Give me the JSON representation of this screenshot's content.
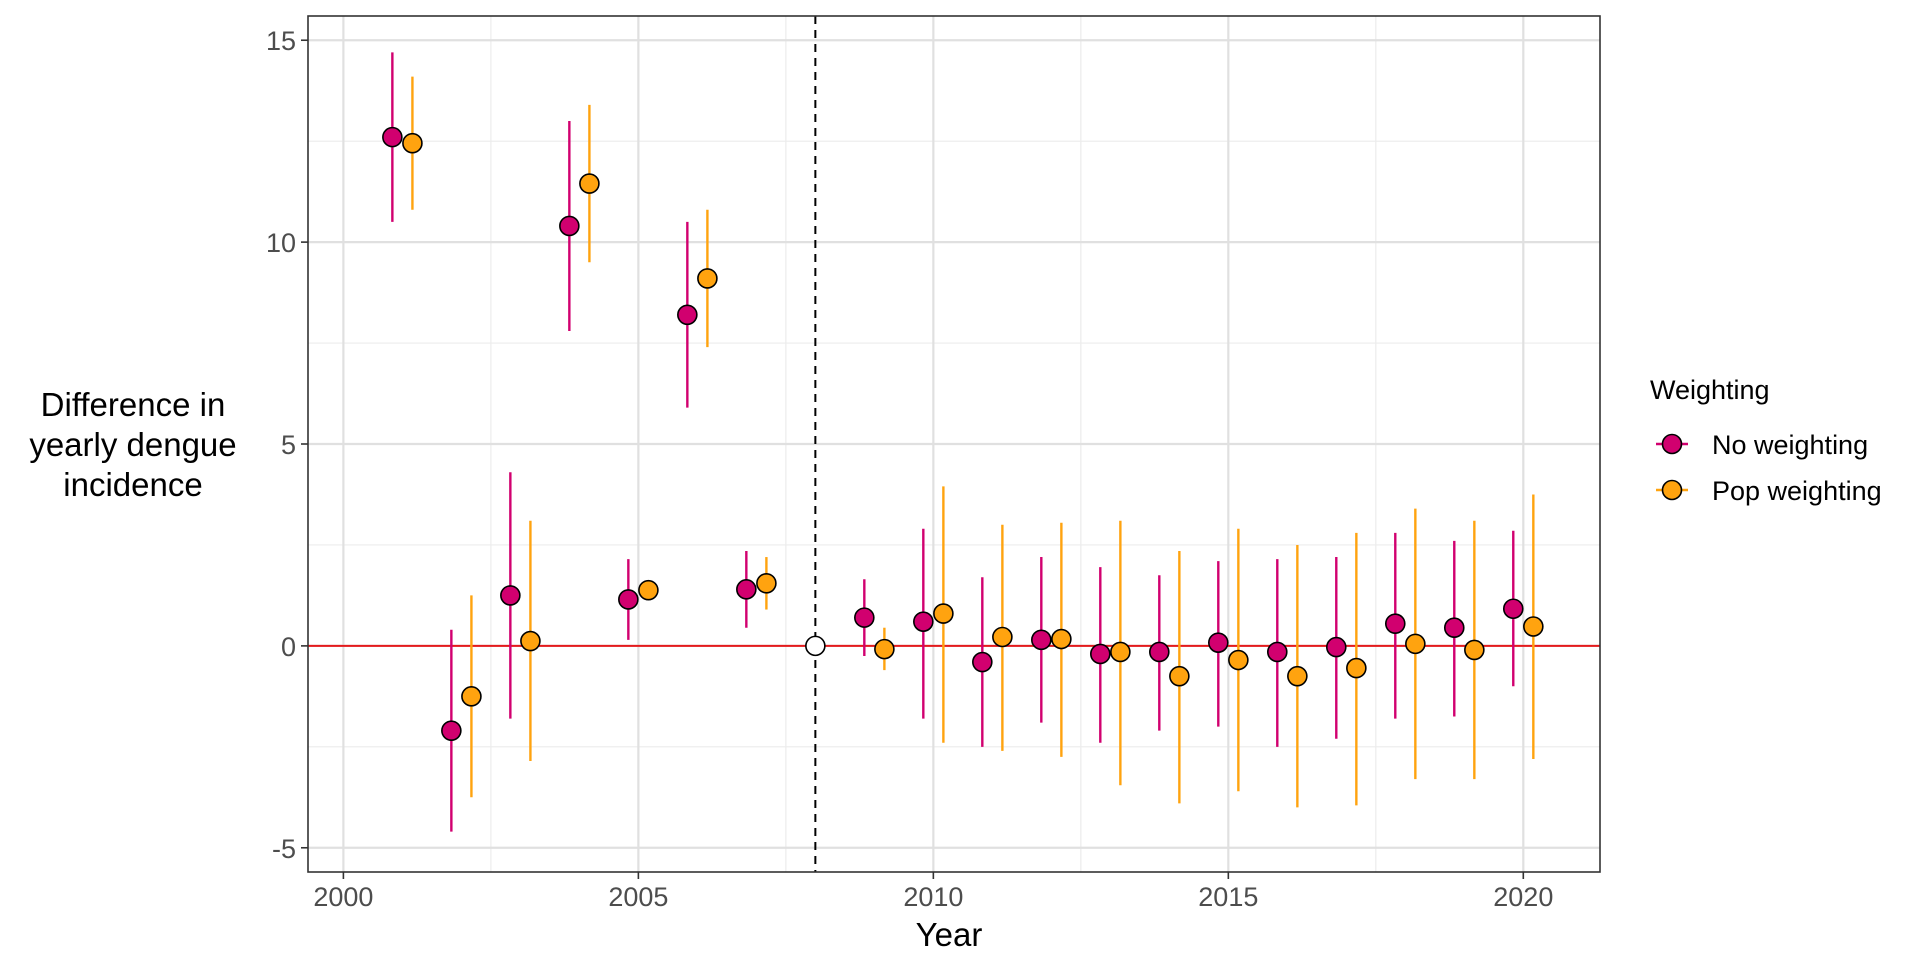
{
  "chart_data": {
    "type": "scatter",
    "title": "",
    "xlabel": "Year",
    "ylabel": "Difference in yearly dengue incidence",
    "ylabel_lines": [
      "Difference in",
      "yearly dengue",
      "incidence"
    ],
    "xlim": [
      1999.4,
      2021.3
    ],
    "ylim": [
      -5.6,
      15.6
    ],
    "x_ticks": [
      2000,
      2005,
      2010,
      2015,
      2020
    ],
    "y_ticks": [
      -5,
      0,
      5,
      10,
      15
    ],
    "y_tick_labels": [
      "-5",
      "0",
      "5",
      "10",
      "15"
    ],
    "grid": true,
    "legend": {
      "title": "Weighting",
      "position": "right"
    },
    "reference_line": {
      "y": 0,
      "color": "#e41a1c"
    },
    "vertical_line": {
      "x": 2008,
      "style": "dashed"
    },
    "reference_point": {
      "x": 2008,
      "y": 0,
      "color": "#ffffff"
    },
    "series": [
      {
        "name": "No weighting",
        "color": "#d1006f",
        "dodge": -0.17,
        "points": [
          {
            "x": 2001,
            "y": 12.6,
            "lo": 10.5,
            "hi": 14.7
          },
          {
            "x": 2002,
            "y": -2.1,
            "lo": -4.6,
            "hi": 0.4
          },
          {
            "x": 2003,
            "y": 1.25,
            "lo": -1.8,
            "hi": 4.3
          },
          {
            "x": 2004,
            "y": 10.4,
            "lo": 7.8,
            "hi": 13.0
          },
          {
            "x": 2005,
            "y": 1.15,
            "lo": 0.15,
            "hi": 2.15
          },
          {
            "x": 2006,
            "y": 8.2,
            "lo": 5.9,
            "hi": 10.5
          },
          {
            "x": 2007,
            "y": 1.4,
            "lo": 0.45,
            "hi": 2.35
          },
          {
            "x": 2009,
            "y": 0.7,
            "lo": -0.25,
            "hi": 1.65
          },
          {
            "x": 2010,
            "y": 0.6,
            "lo": -1.8,
            "hi": 2.9
          },
          {
            "x": 2011,
            "y": -0.4,
            "lo": -2.5,
            "hi": 1.7
          },
          {
            "x": 2012,
            "y": 0.15,
            "lo": -1.9,
            "hi": 2.2
          },
          {
            "x": 2013,
            "y": -0.2,
            "lo": -2.4,
            "hi": 1.95
          },
          {
            "x": 2014,
            "y": -0.15,
            "lo": -2.1,
            "hi": 1.75
          },
          {
            "x": 2015,
            "y": 0.08,
            "lo": -2.0,
            "hi": 2.1
          },
          {
            "x": 2016,
            "y": -0.15,
            "lo": -2.5,
            "hi": 2.15
          },
          {
            "x": 2017,
            "y": -0.03,
            "lo": -2.3,
            "hi": 2.2
          },
          {
            "x": 2018,
            "y": 0.55,
            "lo": -1.8,
            "hi": 2.8
          },
          {
            "x": 2019,
            "y": 0.45,
            "lo": -1.75,
            "hi": 2.6
          },
          {
            "x": 2020,
            "y": 0.92,
            "lo": -1.0,
            "hi": 2.85
          }
        ]
      },
      {
        "name": "Pop weighting",
        "color": "#ffa30f",
        "dodge": 0.17,
        "points": [
          {
            "x": 2001,
            "y": 12.45,
            "lo": 10.8,
            "hi": 14.1
          },
          {
            "x": 2002,
            "y": -1.25,
            "lo": -3.75,
            "hi": 1.25
          },
          {
            "x": 2003,
            "y": 0.12,
            "lo": -2.85,
            "hi": 3.1
          },
          {
            "x": 2004,
            "y": 11.45,
            "lo": 9.5,
            "hi": 13.4
          },
          {
            "x": 2005,
            "y": 1.38,
            "lo": 1.38,
            "hi": 1.38
          },
          {
            "x": 2006,
            "y": 9.1,
            "lo": 7.4,
            "hi": 10.8
          },
          {
            "x": 2007,
            "y": 1.55,
            "lo": 0.9,
            "hi": 2.2
          },
          {
            "x": 2009,
            "y": -0.08,
            "lo": -0.6,
            "hi": 0.45
          },
          {
            "x": 2010,
            "y": 0.8,
            "lo": -2.4,
            "hi": 3.95
          },
          {
            "x": 2011,
            "y": 0.22,
            "lo": -2.6,
            "hi": 3.0
          },
          {
            "x": 2012,
            "y": 0.17,
            "lo": -2.75,
            "hi": 3.05
          },
          {
            "x": 2013,
            "y": -0.15,
            "lo": -3.45,
            "hi": 3.1
          },
          {
            "x": 2014,
            "y": -0.75,
            "lo": -3.9,
            "hi": 2.35
          },
          {
            "x": 2015,
            "y": -0.35,
            "lo": -3.6,
            "hi": 2.9
          },
          {
            "x": 2016,
            "y": -0.75,
            "lo": -4.0,
            "hi": 2.5
          },
          {
            "x": 2017,
            "y": -0.55,
            "lo": -3.95,
            "hi": 2.8
          },
          {
            "x": 2018,
            "y": 0.05,
            "lo": -3.3,
            "hi": 3.4
          },
          {
            "x": 2019,
            "y": -0.1,
            "lo": -3.3,
            "hi": 3.1
          },
          {
            "x": 2020,
            "y": 0.48,
            "lo": -2.8,
            "hi": 3.75
          }
        ]
      }
    ]
  }
}
